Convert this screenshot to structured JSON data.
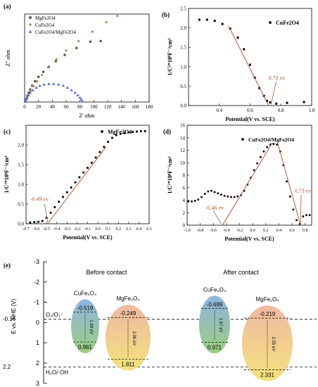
{
  "figure": {
    "panel_labels": [
      "(a)",
      "(b)",
      "(c)",
      "(d)",
      "(e)"
    ]
  },
  "chart_data": [
    {
      "panel": "(a)",
      "type": "scatter",
      "xlabel": "Z' ohm",
      "ylabel": "Z'' ohm",
      "xlim": [
        0,
        180
      ],
      "ylim": [
        0,
        140
      ],
      "xticks": [
        0,
        20,
        40,
        60,
        80,
        100,
        120,
        140,
        160,
        180
      ],
      "legend_position": "top-left",
      "series": [
        {
          "name": "MgFe2O4",
          "color": "#555555",
          "marker": "square",
          "x": [
            1,
            2,
            3,
            4,
            6,
            8,
            11,
            15,
            20,
            27,
            35,
            45,
            58,
            75,
            95,
            110
          ],
          "y": [
            1,
            3,
            6,
            10,
            15,
            20,
            26,
            33,
            40,
            48,
            56,
            65,
            75,
            86,
            96,
            97
          ]
        },
        {
          "name": "CuFe2O4",
          "color": "#b58a52",
          "marker": "circle",
          "x": [
            1,
            2,
            4,
            6,
            9,
            13,
            18,
            25,
            34,
            46,
            60,
            78,
            98,
            118,
            134
          ],
          "y": [
            1,
            3,
            7,
            12,
            18,
            25,
            33,
            43,
            55,
            68,
            82,
            97,
            112,
            127,
            137
          ]
        },
        {
          "name": "CuFe2O4/MgFe2O4",
          "color": "#4a63d9",
          "marker": "triangle",
          "x": [
            0.5,
            1.5,
            3,
            5,
            8,
            12,
            17,
            22,
            28,
            35,
            42,
            49,
            56,
            62,
            68,
            73,
            77,
            80,
            82,
            83.5
          ],
          "y": [
            1,
            4,
            7,
            11,
            15,
            19,
            23,
            26,
            28,
            29,
            29,
            28,
            26,
            23,
            19,
            15,
            11,
            7,
            4,
            1
          ]
        }
      ]
    },
    {
      "panel": "(b)",
      "type": "scatter",
      "xlabel": "Potential(V vs. SCE)",
      "ylabel": "1/C²*10⁹F⁻²cm⁴",
      "xlim": [
        0.2,
        1.0
      ],
      "ylim": [
        0,
        2.5
      ],
      "xticks": [
        0.4,
        0.6,
        0.8,
        1.0
      ],
      "yticks": [
        0,
        0.5,
        1.0,
        1.5,
        2.0,
        2.5
      ],
      "series": [
        {
          "name": "CuFe2O4",
          "x": [
            0.27,
            0.32,
            0.37,
            0.42,
            0.47,
            0.52,
            0.56,
            0.6,
            0.63,
            0.66,
            0.69,
            0.71,
            0.73,
            0.77,
            0.84,
            0.95
          ],
          "y": [
            2.21,
            2.21,
            2.18,
            2.1,
            1.98,
            1.75,
            1.45,
            1.05,
            0.72,
            0.45,
            0.25,
            0.12,
            0.08,
            0.05,
            0.07,
            0.09
          ]
        }
      ],
      "annotation": "0.72 ev",
      "intercept": 0.72
    },
    {
      "panel": "(c)",
      "type": "scatter",
      "xlabel": "Potential(V vs. SCE)",
      "ylabel": "1/C²*10⁹F⁻²cm⁴",
      "xlim": [
        -0.7,
        0.5
      ],
      "ylim": [
        0,
        2.5
      ],
      "xticks": [
        -0.7,
        -0.6,
        -0.5,
        -0.4,
        -0.3,
        -0.2,
        -0.1,
        0.0,
        0.1,
        0.2,
        0.3,
        0.4,
        0.5
      ],
      "yticks": [
        0,
        0.5,
        1.0,
        1.5,
        2.0
      ],
      "series": [
        {
          "name": "MgFe2O4",
          "x": [
            -0.66,
            -0.62,
            -0.58,
            -0.54,
            -0.5,
            -0.46,
            -0.42,
            -0.38,
            -0.34,
            -0.3,
            -0.26,
            -0.22,
            -0.18,
            -0.14,
            -0.1,
            -0.06,
            -0.02,
            0.02,
            0.06,
            0.1,
            0.14,
            0.18,
            0.22,
            0.26,
            0.3,
            0.34,
            0.38,
            0.42,
            0.46
          ],
          "y": [
            0.03,
            0.04,
            0.05,
            0.07,
            0.15,
            0.28,
            0.42,
            0.56,
            0.68,
            0.8,
            0.92,
            1.05,
            1.18,
            1.3,
            1.42,
            1.55,
            1.68,
            1.82,
            1.95,
            2.08,
            2.18,
            2.25,
            2.28,
            2.3,
            2.32,
            2.33,
            2.34,
            2.35,
            2.35
          ]
        }
      ],
      "annotation": "-0.49 ev",
      "intercept": -0.49
    },
    {
      "panel": "(d)",
      "type": "scatter",
      "xlabel": "Potential(V vs. SCE)",
      "ylabel": "1/C²*10⁹F⁻²cm⁴",
      "xlim": [
        -1.0,
        0.9
      ],
      "ylim": [
        0,
        16
      ],
      "xticks": [
        -1.0,
        -0.8,
        -0.6,
        -0.4,
        -0.2,
        0.0,
        0.2,
        0.4,
        0.6,
        0.8
      ],
      "yticks": [
        0,
        2,
        4,
        6,
        8,
        10,
        12,
        14,
        16
      ],
      "series": [
        {
          "name": "CuFe2O4/MgFe2O4",
          "x": [
            -0.98,
            -0.93,
            -0.88,
            -0.83,
            -0.78,
            -0.73,
            -0.68,
            -0.63,
            -0.58,
            -0.53,
            -0.48,
            -0.43,
            -0.38,
            -0.33,
            -0.28,
            -0.23,
            -0.18,
            -0.13,
            -0.08,
            -0.03,
            0.02,
            0.07,
            0.12,
            0.17,
            0.22,
            0.27,
            0.32,
            0.37,
            0.42,
            0.47,
            0.52,
            0.57,
            0.62,
            0.67,
            0.72,
            0.77,
            0.82,
            0.87
          ],
          "y": [
            3.8,
            3.8,
            3.9,
            4.1,
            4.5,
            5.0,
            5.4,
            5.5,
            5.3,
            5.1,
            4.9,
            4.7,
            4.6,
            4.5,
            4.5,
            4.6,
            4.8,
            5.5,
            6.5,
            7.6,
            8.8,
            9.9,
            10.9,
            11.8,
            12.5,
            12.9,
            13.0,
            12.9,
            11.8,
            9.6,
            7.0,
            4.6,
            2.5,
            0.8,
            0.2,
            1.4,
            1.6,
            1.6
          ]
        }
      ],
      "annotations": [
        "-0.46 ev",
        "0.73 ev"
      ],
      "intercepts": [
        -0.46,
        0.73
      ]
    },
    {
      "panel": "(e)",
      "type": "diagram",
      "ylabel": "E vs. NHE (V)",
      "ylim": [
        3,
        -3
      ],
      "yticks": [
        -3,
        -2,
        -1,
        0,
        1,
        2,
        3
      ],
      "levels": [
        {
          "label": "O₂/O₂⁻",
          "value": -0.16,
          "tick_label": "-0.16"
        },
        {
          "label": "H₂O/·OH",
          "value": 2.2,
          "tick_label": "2.2"
        }
      ],
      "groups": [
        {
          "title": "Before contact",
          "materials": [
            {
              "name": "CuFe₂O₄",
              "cb": -0.519,
              "vb": 0.961,
              "gap": "1.48 eV",
              "cb_label": "-0.519",
              "vb_label": "0.961"
            },
            {
              "name": "MgFe₂O₄",
              "cb": -0.249,
              "vb": 1.811,
              "gap": "2.06 eV",
              "cb_label": "-0.249",
              "vb_label": "1.811"
            }
          ]
        },
        {
          "title": "After contact",
          "materials": [
            {
              "name": "CuFe₂O₄",
              "cb": -0.699,
              "vb": 0.971,
              "gap": "1.67 eV",
              "cb_label": "-0.699",
              "vb_label": "0.971"
            },
            {
              "name": "MgFe₂O₄",
              "cb": -0.219,
              "vb": 2.331,
              "gap": "2.55 eV",
              "cb_label": "-0.219",
              "vb_label": "2.331"
            }
          ]
        }
      ]
    }
  ]
}
